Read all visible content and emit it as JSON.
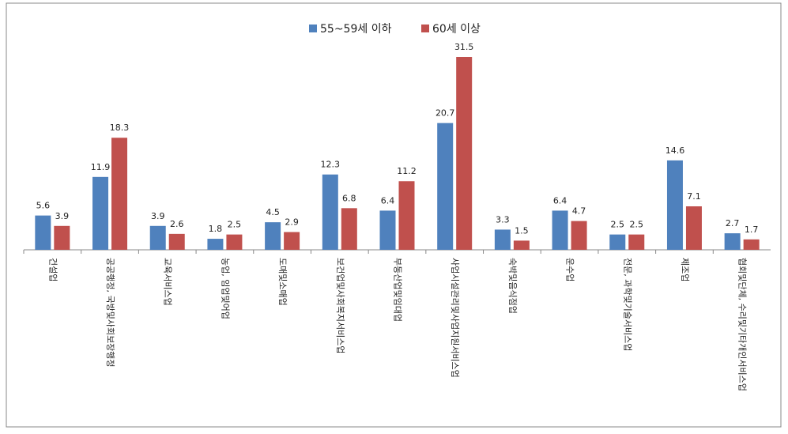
{
  "chart_data": {
    "type": "bar",
    "categories": [
      "건설업",
      "공공행정, 국방및사회보장행정",
      "교육서비스업",
      "농업, 임업및어업",
      "도매및소매업",
      "보건업및사회복지서비스업",
      "부동산업및임대업",
      "사업시설관리및사업지원서비스업",
      "숙박및음식점업",
      "운수업",
      "전문, 과학및기술서비스업",
      "제조업",
      "협회및단체, 수리및기타개인서비스업"
    ],
    "series": [
      {
        "name": "55~59세 이하",
        "color": "#4f81bd",
        "values": [
          5.6,
          11.9,
          3.9,
          1.8,
          4.5,
          12.3,
          6.4,
          20.7,
          3.3,
          6.4,
          2.5,
          14.6,
          2.7
        ]
      },
      {
        "name": "60세 이상",
        "color": "#c0504d",
        "values": [
          3.9,
          18.3,
          2.6,
          2.5,
          2.9,
          6.8,
          11.2,
          31.5,
          1.5,
          4.7,
          2.5,
          7.1,
          1.7
        ]
      }
    ]
  }
}
